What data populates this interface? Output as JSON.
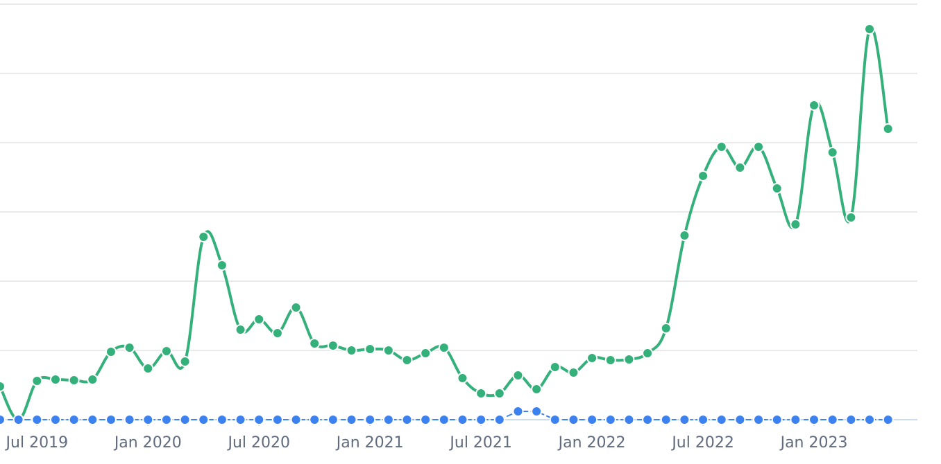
{
  "chart_data": {
    "type": "line",
    "x_tick_labels": [
      "Jul 2019",
      "Jan 2020",
      "Jul 2020",
      "Jan 2021",
      "Jul 2021",
      "Jan 2022",
      "Jul 2022",
      "Jan 2023"
    ],
    "x_start": "2019-05",
    "ylim": [
      0,
      60
    ],
    "y_gridlines": [
      0,
      10,
      20,
      30,
      40,
      50,
      60
    ],
    "grid": true,
    "series": [
      {
        "color": "#34b07a",
        "values": [
          4.8,
          0,
          5.6,
          5.8,
          5.7,
          5.8,
          9.8,
          10.4,
          7.4,
          9.9,
          8.4,
          26.4,
          22.3,
          13.0,
          14.5,
          12.5,
          16.2,
          11.0,
          10.7,
          10.0,
          10.2,
          10.0,
          8.6,
          9.6,
          10.4,
          6.0,
          3.8,
          3.8,
          6.4,
          4.4,
          7.6,
          6.8,
          8.9,
          8.6,
          8.7,
          9.6,
          13.2,
          26.6,
          35.2,
          39.4,
          36.4,
          39.4,
          33.4,
          28.2,
          45.4,
          38.6,
          29.2,
          56.4,
          42.0
        ]
      },
      {
        "color": "#3b82f0",
        "values": [
          0,
          0,
          0,
          0,
          0,
          0,
          0,
          0,
          0,
          0,
          0,
          0,
          0,
          0,
          0,
          0,
          0,
          0,
          0,
          0,
          0,
          0,
          0,
          0,
          0,
          0,
          0,
          0,
          1.2,
          1.2,
          0,
          0,
          0,
          0,
          0,
          0,
          0,
          0,
          0,
          0,
          0,
          0,
          0,
          0,
          0,
          0,
          0,
          0,
          0
        ]
      }
    ]
  }
}
